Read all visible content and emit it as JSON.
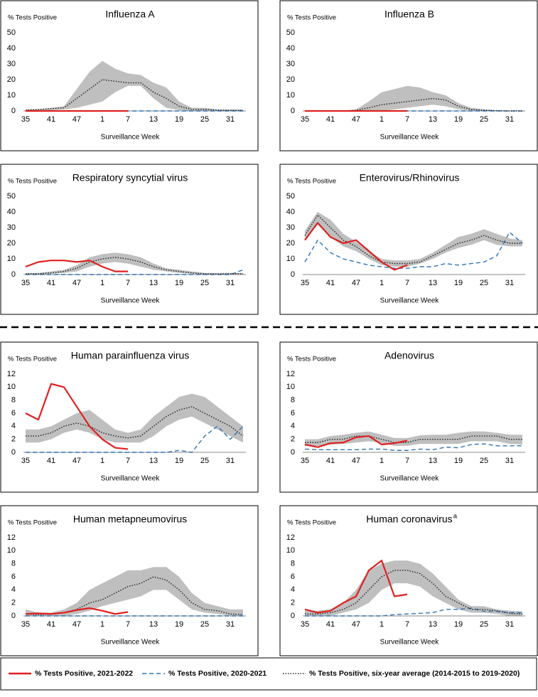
{
  "legend": [
    {
      "name": "% Tests Positive, 2021-2022",
      "color": "#e02020",
      "dash": "none"
    },
    {
      "name": "% Tests Positive, 2020-2021",
      "color": "#2e75b6",
      "dash": "6 4"
    },
    {
      "name": "% Tests Positive, six-year average (2014-2015 to 2019-2020)",
      "color": "#222222",
      "dash": "1.5 2"
    }
  ],
  "chart_data": [
    {
      "type": "line",
      "title": "Influenza A",
      "ylabel": "% Tests Positive",
      "xlabel": "Surveillance Week",
      "categories": [
        35,
        null,
        41,
        null,
        47,
        null,
        1,
        null,
        7,
        null,
        13,
        null,
        19,
        null,
        25,
        null,
        31,
        null
      ],
      "ylim": [
        0,
        50
      ],
      "yticks": [
        0,
        10,
        20,
        30,
        40,
        50
      ],
      "band": {
        "color": "#bfbfbf",
        "low": [
          0,
          0,
          0.5,
          1,
          2,
          4,
          6,
          12,
          16,
          16,
          8,
          2,
          0.5,
          0,
          0,
          0,
          0,
          0
        ],
        "high": [
          1,
          1,
          2,
          3,
          14,
          25,
          32,
          27,
          24,
          23,
          18,
          15,
          6,
          2,
          2,
          1,
          1,
          1
        ]
      },
      "series": [
        {
          "values": [
            0,
            0,
            0,
            0,
            0,
            0,
            0,
            0,
            0,
            null,
            null,
            null,
            null,
            null,
            null,
            null,
            null,
            null
          ]
        },
        {
          "values": [
            0,
            0,
            0,
            0,
            0,
            0,
            0,
            0,
            0,
            0,
            0,
            0,
            0,
            0,
            0,
            0,
            0,
            0
          ]
        },
        {
          "values": [
            0.5,
            1,
            1.5,
            2,
            8,
            14,
            20,
            19,
            18,
            18,
            12,
            8,
            3,
            1,
            1,
            0.5,
            0.3,
            0.3
          ]
        }
      ]
    },
    {
      "type": "line",
      "title": "Influenza B",
      "ylabel": "% Tests Positive",
      "xlabel": "Surveillance Week",
      "categories": [
        35,
        null,
        41,
        null,
        47,
        null,
        1,
        null,
        7,
        null,
        13,
        null,
        19,
        null,
        25,
        null,
        31,
        null
      ],
      "ylim": [
        0,
        50
      ],
      "yticks": [
        0,
        10,
        20,
        30,
        40,
        50
      ],
      "band": {
        "color": "#bfbfbf",
        "low": [
          0,
          0,
          0,
          0,
          0,
          0,
          0,
          1,
          2,
          3,
          4,
          3,
          1,
          0,
          0,
          0,
          0,
          0
        ],
        "high": [
          0,
          0,
          0,
          0,
          1,
          6,
          12,
          14,
          16,
          15,
          12,
          10,
          5,
          2,
          1,
          0.5,
          0,
          0
        ]
      },
      "series": [
        {
          "values": [
            0,
            0,
            0,
            0,
            0,
            0,
            0,
            0,
            0,
            null,
            null,
            null,
            null,
            null,
            null,
            null,
            null,
            null
          ]
        },
        {
          "values": [
            0,
            0,
            0,
            0,
            0,
            0,
            0,
            0,
            0,
            0,
            0,
            0,
            0,
            0,
            0,
            0,
            0,
            0
          ]
        },
        {
          "values": [
            0,
            0,
            0,
            0,
            0.5,
            2,
            4,
            5,
            6,
            7,
            8,
            7,
            3,
            1,
            0.5,
            0.2,
            0,
            0
          ]
        }
      ]
    },
    {
      "type": "line",
      "title": "Respiratory syncytial virus",
      "ylabel": "% Tests Positive",
      "xlabel": "Surveillance Week",
      "categories": [
        35,
        null,
        41,
        null,
        47,
        null,
        1,
        null,
        7,
        null,
        13,
        null,
        19,
        null,
        25,
        null,
        31,
        null
      ],
      "ylim": [
        0,
        50
      ],
      "yticks": [
        0,
        10,
        20,
        30,
        40,
        50
      ],
      "band": {
        "color": "#bfbfbf",
        "low": [
          0,
          0,
          0.5,
          1,
          2,
          5,
          7,
          8,
          7,
          5,
          3,
          2,
          1,
          0.5,
          0,
          0,
          0,
          0
        ],
        "high": [
          1,
          1,
          2,
          3,
          6,
          11,
          13,
          14,
          13,
          11,
          7,
          4,
          3,
          2,
          1,
          1,
          1,
          1
        ]
      },
      "series": [
        {
          "values": [
            5,
            8,
            9,
            9,
            8,
            9,
            5,
            2,
            2,
            null,
            null,
            null,
            null,
            null,
            null,
            null,
            null,
            null
          ]
        },
        {
          "values": [
            0,
            0,
            0,
            0,
            0,
            0,
            0,
            0,
            0,
            0,
            0,
            0,
            0,
            0,
            0,
            0,
            0,
            3
          ]
        },
        {
          "values": [
            0.5,
            0.5,
            1,
            2,
            4,
            8,
            10,
            11,
            10,
            8,
            5,
            3,
            2,
            1,
            0.5,
            0.3,
            0.5,
            0.5
          ]
        }
      ]
    },
    {
      "type": "line",
      "title": "Enterovirus/Rhinovirus",
      "ylabel": "% Tests Positive",
      "xlabel": "Surveillance Week",
      "categories": [
        35,
        null,
        41,
        null,
        47,
        null,
        1,
        null,
        7,
        null,
        13,
        null,
        19,
        null,
        25,
        null,
        31,
        null
      ],
      "ylim": [
        0,
        50
      ],
      "yticks": [
        0,
        10,
        20,
        30,
        40,
        50
      ],
      "band": {
        "color": "#bfbfbf",
        "low": [
          22,
          32,
          24,
          18,
          15,
          10,
          6,
          5,
          5,
          7,
          10,
          14,
          17,
          19,
          22,
          19,
          18,
          18
        ],
        "high": [
          28,
          40,
          35,
          26,
          21,
          15,
          10,
          9,
          9,
          10,
          14,
          19,
          24,
          26,
          29,
          26,
          23,
          22
        ]
      },
      "series": [
        {
          "values": [
            22,
            33,
            24,
            20,
            22,
            15,
            8,
            3,
            6,
            null,
            null,
            null,
            null,
            null,
            null,
            null,
            null,
            null
          ]
        },
        {
          "values": [
            8,
            22,
            14,
            10,
            8,
            6,
            5,
            4,
            4,
            5,
            5,
            7,
            6,
            7,
            8,
            12,
            27,
            20
          ]
        },
        {
          "values": [
            25,
            38,
            30,
            22,
            18,
            12,
            8,
            7,
            7,
            8,
            12,
            16,
            20,
            22,
            25,
            22,
            20,
            20
          ]
        }
      ]
    },
    {
      "type": "line",
      "title": "Human parainfluenza virus",
      "ylabel": "% Tests Positive",
      "xlabel": "Surveillance Week",
      "categories": [
        35,
        null,
        41,
        null,
        47,
        null,
        1,
        null,
        7,
        null,
        13,
        null,
        19,
        null,
        25,
        null,
        31,
        null
      ],
      "ylim": [
        0,
        12
      ],
      "yticks": [
        0,
        2,
        4,
        6,
        8,
        10,
        12
      ],
      "band": {
        "color": "#bfbfbf",
        "low": [
          1.5,
          1.5,
          2,
          3,
          3.5,
          3,
          2,
          1.5,
          1.5,
          1.5,
          2.5,
          4,
          5,
          5.5,
          4.5,
          3.5,
          2.5,
          1.5
        ],
        "high": [
          3.5,
          3.5,
          4,
          5,
          6,
          6.5,
          5,
          3.5,
          3,
          3.5,
          5.5,
          7,
          8.5,
          9,
          8.5,
          7,
          5.5,
          4
        ]
      },
      "series": [
        {
          "values": [
            6,
            5,
            10.5,
            10,
            7,
            4,
            2,
            0.7,
            0.5,
            null,
            null,
            null,
            null,
            null,
            null,
            null,
            null,
            null
          ]
        },
        {
          "values": [
            0,
            0,
            0,
            0,
            0,
            0,
            0,
            0,
            0,
            0,
            0,
            0,
            0.3,
            0,
            2.5,
            4,
            2,
            4
          ]
        },
        {
          "values": [
            2.5,
            2.5,
            3,
            4,
            4.5,
            4,
            3,
            2.5,
            2.2,
            2.5,
            4,
            5.5,
            6.5,
            7,
            6,
            5,
            4,
            2.5
          ]
        }
      ]
    },
    {
      "type": "line",
      "title": "Adenovirus",
      "ylabel": "% Tests Positive",
      "xlabel": "Surveillance Week",
      "categories": [
        35,
        null,
        41,
        null,
        47,
        null,
        1,
        null,
        7,
        null,
        13,
        null,
        19,
        null,
        25,
        null,
        31,
        null
      ],
      "ylim": [
        0,
        12
      ],
      "yticks": [
        0,
        2,
        4,
        6,
        8,
        10,
        12
      ],
      "band": {
        "color": "#bfbfbf",
        "low": [
          1,
          1,
          1.2,
          1.3,
          1.5,
          1.7,
          1.4,
          1,
          1,
          1.3,
          1.3,
          1.3,
          1.3,
          1.7,
          1.7,
          1.7,
          1.3,
          1.2
        ],
        "high": [
          2,
          2,
          2.5,
          2.7,
          3,
          3.2,
          2.7,
          2.2,
          2.2,
          2.6,
          2.7,
          2.7,
          3,
          3.2,
          3.2,
          3,
          2.7,
          2.7
        ]
      },
      "series": [
        {
          "values": [
            1.2,
            0.8,
            1.4,
            1.5,
            2.3,
            2.5,
            1.2,
            1.4,
            1.8,
            null,
            null,
            null,
            null,
            null,
            null,
            null,
            null,
            null
          ]
        },
        {
          "values": [
            0.5,
            0.4,
            0.4,
            0.4,
            0.4,
            0.5,
            0.5,
            0.3,
            0.3,
            0.5,
            0.4,
            0.8,
            0.7,
            1.2,
            1.3,
            1,
            1,
            1
          ]
        },
        {
          "values": [
            1.5,
            1.5,
            2,
            2,
            2.5,
            2.5,
            2,
            1.5,
            1.5,
            2,
            2,
            2,
            2,
            2.5,
            2.5,
            2.5,
            2,
            2
          ]
        }
      ]
    },
    {
      "type": "line",
      "title": "Human metapneumovirus",
      "ylabel": "% Tests Positive",
      "xlabel": "Surveillance Week",
      "categories": [
        35,
        null,
        41,
        null,
        47,
        null,
        1,
        null,
        7,
        null,
        13,
        null,
        19,
        null,
        25,
        null,
        31,
        null
      ],
      "ylim": [
        0,
        12
      ],
      "yticks": [
        0,
        2,
        4,
        6,
        8,
        10,
        12
      ],
      "band": {
        "color": "#bfbfbf",
        "low": [
          0,
          0,
          0,
          0,
          0.3,
          0.8,
          1.5,
          2,
          2.5,
          3,
          4,
          4,
          2.5,
          1,
          0.5,
          0.3,
          0,
          0
        ],
        "high": [
          1,
          0.5,
          0.5,
          1,
          2,
          4,
          5,
          6,
          7,
          7,
          7.5,
          7.5,
          6,
          3.5,
          2,
          1.5,
          1,
          1
        ]
      },
      "series": [
        {
          "values": [
            0.3,
            0.4,
            0.3,
            0.5,
            0.9,
            1.2,
            0.8,
            0.3,
            0.6,
            null,
            null,
            null,
            null,
            null,
            null,
            null,
            null,
            null
          ]
        },
        {
          "values": [
            0,
            0,
            0,
            0,
            0,
            0,
            0,
            0,
            0,
            0,
            0,
            0,
            0,
            0,
            0,
            0,
            0,
            0
          ]
        },
        {
          "values": [
            0.3,
            0.2,
            0.3,
            0.5,
            1,
            2,
            2.5,
            3.5,
            4.5,
            5,
            6,
            5.5,
            4,
            2,
            1,
            0.8,
            0.3,
            0.2
          ]
        }
      ]
    },
    {
      "type": "line",
      "title": "Human coronavirus",
      "title_note": "a",
      "ylabel": "% Tests Positive",
      "xlabel": "Surveillance Week",
      "categories": [
        35,
        null,
        41,
        null,
        47,
        null,
        1,
        null,
        7,
        null,
        13,
        null,
        19,
        null,
        25,
        null,
        31,
        null
      ],
      "ylim": [
        0,
        12
      ],
      "yticks": [
        0,
        2,
        4,
        6,
        8,
        10,
        12
      ],
      "band": {
        "color": "#bfbfbf",
        "low": [
          0,
          0,
          0,
          0.5,
          1,
          2,
          4,
          5,
          5,
          4.5,
          3,
          2,
          1,
          0.5,
          0.5,
          0.3,
          0,
          0
        ],
        "high": [
          0.8,
          0.8,
          1,
          2,
          4,
          7,
          8,
          8.5,
          8.5,
          8,
          6.5,
          4.5,
          2.5,
          1.5,
          1.5,
          1,
          0.8,
          0.7
        ]
      },
      "series": [
        {
          "values": [
            1,
            0.5,
            0.8,
            2,
            3,
            7,
            8.5,
            3,
            3.3,
            null,
            null,
            null,
            null,
            null,
            null,
            null,
            null,
            null
          ]
        },
        {
          "values": [
            0,
            0,
            0,
            0,
            0,
            0,
            0,
            0.2,
            0.3,
            0.4,
            0.5,
            1,
            1,
            1.2,
            0.7,
            0.7,
            0.5,
            0.5
          ]
        },
        {
          "values": [
            0.3,
            0.3,
            0.5,
            1,
            2,
            4,
            6,
            7,
            7,
            6.5,
            5,
            3,
            2,
            1,
            1,
            0.8,
            0.4,
            0.3
          ]
        }
      ]
    }
  ]
}
